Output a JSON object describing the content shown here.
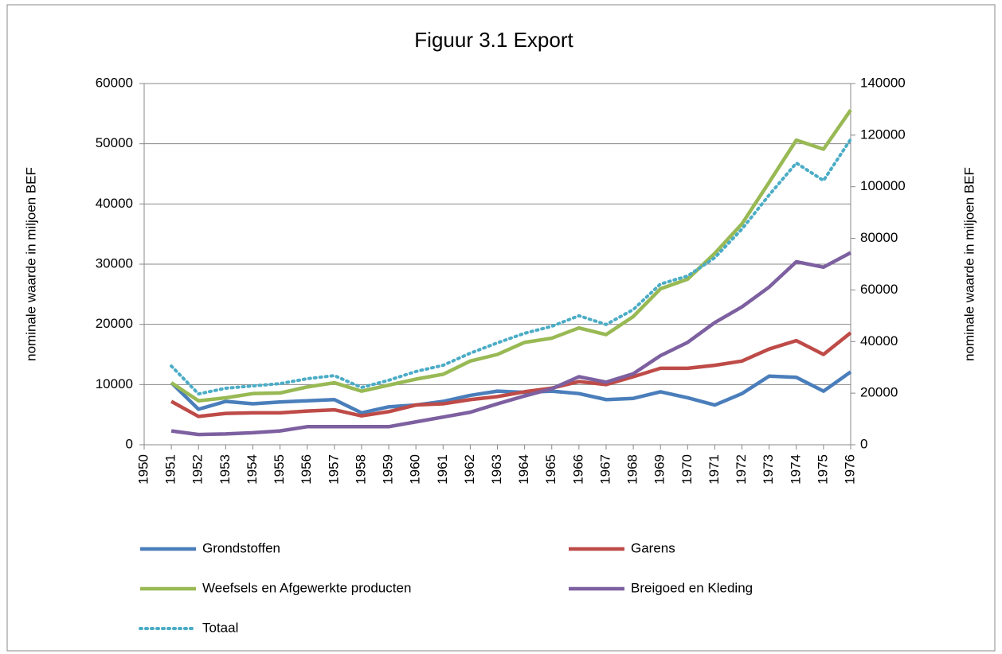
{
  "chart_data": {
    "type": "line",
    "title": "Figuur 3.1 Export",
    "y_label": "nominale waarde in miljoen BEF",
    "y2_label": "nominale waarde in miljoen BEF",
    "categories": [
      "1950",
      "1951",
      "1952",
      "1953",
      "1954",
      "1955",
      "1956",
      "1957",
      "1958",
      "1959",
      "1960",
      "1961",
      "1962",
      "1963",
      "1964",
      "1965",
      "1966",
      "1967",
      "1968",
      "1969",
      "1970",
      "1971",
      "1972",
      "1973",
      "1974",
      "1975",
      "1976"
    ],
    "series": [
      {
        "name": "Grondstoffen",
        "color": "#4a7ebb",
        "values": [
          null,
          10300,
          5900,
          7200,
          6800,
          7100,
          7300,
          7500,
          5300,
          6300,
          6600,
          7200,
          8200,
          8900,
          8700,
          8900,
          8500,
          7500,
          7700,
          8800,
          7800,
          6600,
          8500,
          11400,
          11200,
          8900,
          12100
        ]
      },
      {
        "name": "Garens",
        "color": "#be4b48",
        "values": [
          null,
          7200,
          4700,
          5200,
          5300,
          5300,
          5600,
          5800,
          4800,
          5500,
          6600,
          6800,
          7500,
          8000,
          8800,
          9400,
          10500,
          10000,
          11300,
          12700,
          12700,
          13200,
          13900,
          15900,
          17300,
          15000,
          18600
        ]
      },
      {
        "name": "Weefsels en Afgewerkte producten",
        "color": "#98b954",
        "values": [
          null,
          10300,
          7300,
          7800,
          8500,
          8600,
          9600,
          10300,
          8900,
          9900,
          10900,
          11700,
          13900,
          15000,
          17000,
          17700,
          19400,
          18300,
          21300,
          25900,
          27500,
          31800,
          36700,
          43600,
          50600,
          49100,
          55600
        ]
      },
      {
        "name": "Breigoed en Kleding",
        "color": "#7d60a0",
        "values": [
          null,
          2300,
          1700,
          1800,
          2000,
          2300,
          3000,
          3000,
          3000,
          3000,
          3800,
          4600,
          5400,
          6800,
          8100,
          9300,
          11300,
          10400,
          11800,
          14800,
          17000,
          20300,
          22900,
          26200,
          30400,
          29500,
          31900
        ]
      },
      {
        "name": "Totaal",
        "color": "#4bacc6",
        "axis": "y2",
        "dashed": true,
        "values": [
          null,
          30500,
          19700,
          21900,
          22800,
          23700,
          25600,
          26800,
          22200,
          25000,
          28400,
          30800,
          35500,
          39500,
          43200,
          45900,
          50000,
          46600,
          52400,
          62300,
          65400,
          72500,
          83600,
          96800,
          109200,
          102400,
          118400
        ]
      }
    ],
    "ylim": [
      0,
      60000
    ],
    "yticks": [
      0,
      10000,
      20000,
      30000,
      40000,
      50000,
      60000
    ],
    "y2lim": [
      0,
      140000
    ],
    "y2ticks": [
      0,
      20000,
      40000,
      60000,
      80000,
      100000,
      120000,
      140000
    ],
    "grid": true
  }
}
